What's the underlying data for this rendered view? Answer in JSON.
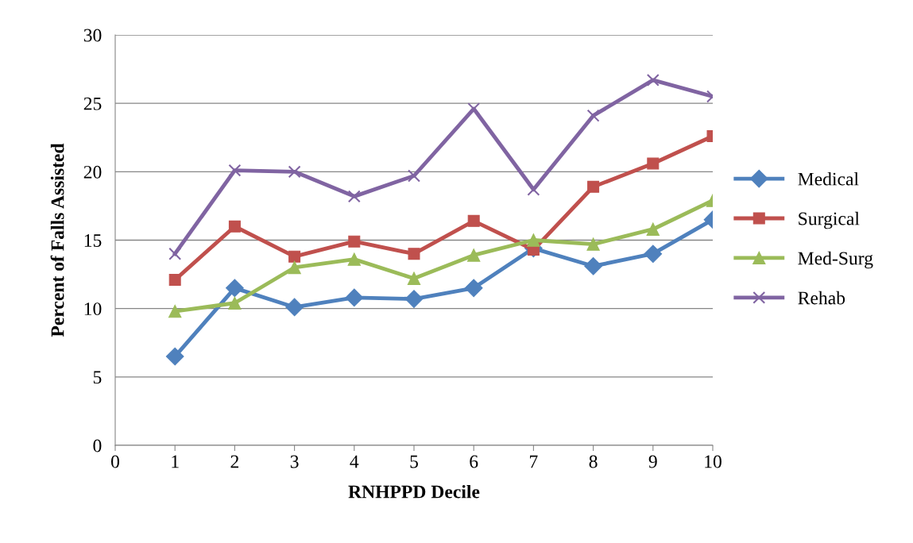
{
  "chart_data": {
    "type": "line",
    "xlabel": "RNHPPD Decile",
    "ylabel": "Percent of Falls Assisted",
    "x": [
      1,
      2,
      3,
      4,
      5,
      6,
      7,
      8,
      9,
      10
    ],
    "xlim": [
      0,
      10
    ],
    "xticks": [
      0,
      1,
      2,
      3,
      4,
      5,
      6,
      7,
      8,
      9,
      10
    ],
    "ylim": [
      0,
      30
    ],
    "yticks": [
      0,
      5,
      10,
      15,
      20,
      25,
      30
    ],
    "grid": "y",
    "legend": "right",
    "line_style": "solid",
    "series": [
      {
        "name": "Medical",
        "color": "#4f81bd",
        "marker": "diamond",
        "values": [
          6.5,
          11.5,
          10.1,
          10.8,
          10.7,
          11.5,
          14.4,
          13.1,
          14.0,
          16.5
        ]
      },
      {
        "name": "Surgical",
        "color": "#c0504d",
        "marker": "square",
        "values": [
          12.1,
          16.0,
          13.8,
          14.9,
          14.0,
          16.4,
          14.3,
          18.9,
          20.6,
          22.6
        ]
      },
      {
        "name": "Med-Surg",
        "color": "#9bbb59",
        "marker": "triangle",
        "values": [
          9.8,
          10.4,
          13.0,
          13.6,
          12.2,
          13.9,
          15.0,
          14.7,
          15.8,
          17.9
        ]
      },
      {
        "name": "Rehab",
        "color": "#8064a2",
        "marker": "cross",
        "values": [
          14.0,
          20.1,
          20.0,
          18.2,
          19.7,
          24.6,
          18.7,
          24.1,
          26.7,
          25.5
        ]
      }
    ]
  }
}
